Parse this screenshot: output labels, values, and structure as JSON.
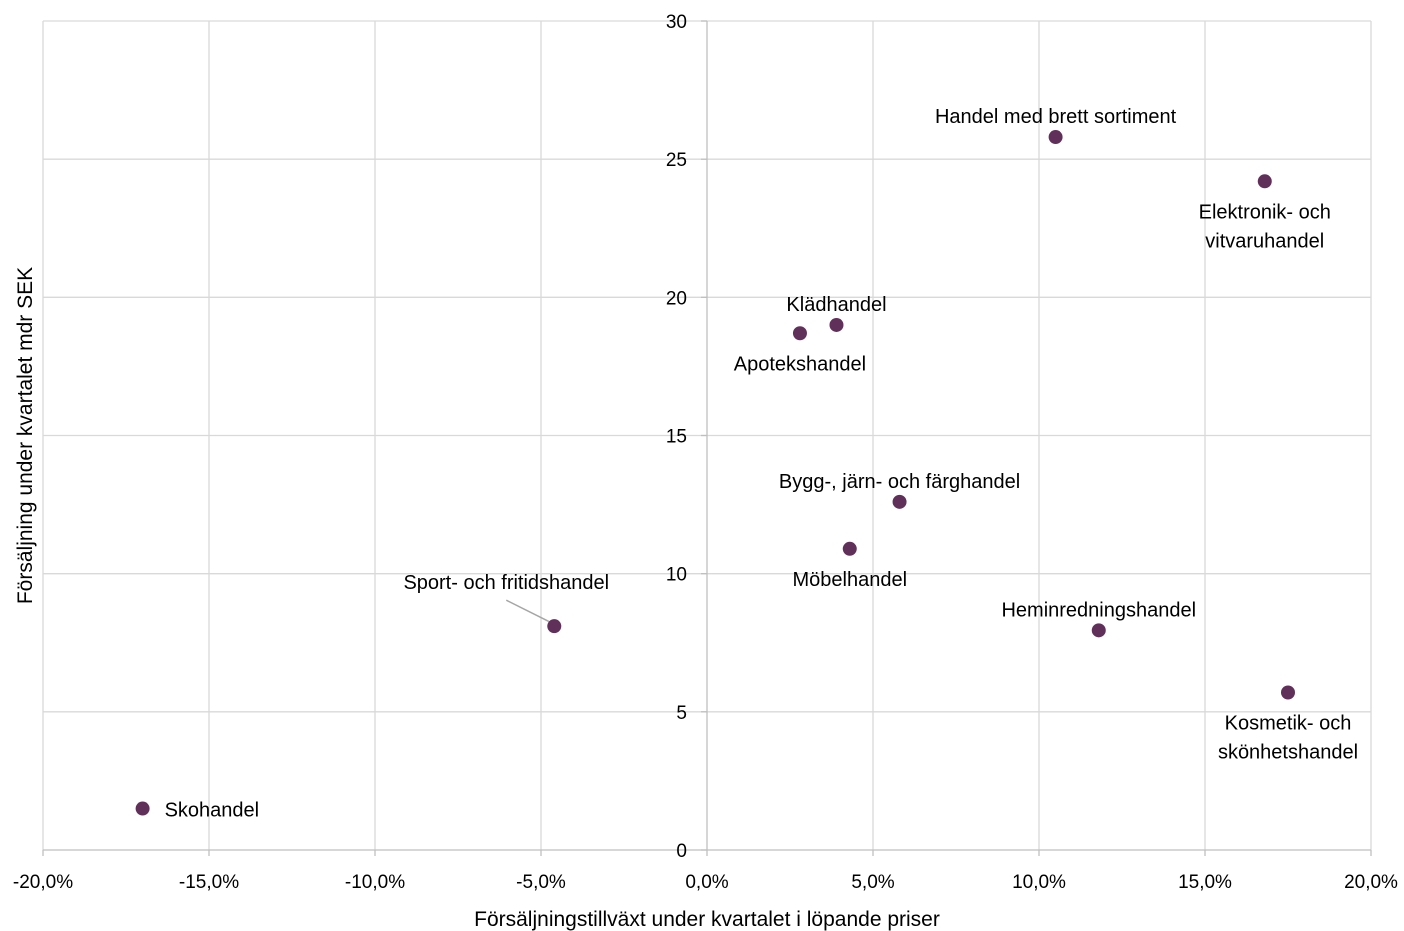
{
  "chart_data": {
    "type": "scatter",
    "xlabel": "Försäljningstillväxt under kvartalet i löpande priser",
    "ylabel": "Försäljning under kvartalet mdr SEK",
    "xlim": [
      -0.2,
      0.2
    ],
    "ylim": [
      0,
      30
    ],
    "x_ticks": [
      {
        "value": -0.2,
        "label": "-20,0%"
      },
      {
        "value": -0.15,
        "label": "-15,0%"
      },
      {
        "value": -0.1,
        "label": "-10,0%"
      },
      {
        "value": -0.05,
        "label": "-5,0%"
      },
      {
        "value": 0.0,
        "label": "0,0%"
      },
      {
        "value": 0.05,
        "label": "5,0%"
      },
      {
        "value": 0.1,
        "label": "10,0%"
      },
      {
        "value": 0.15,
        "label": "15,0%"
      },
      {
        "value": 0.2,
        "label": "20,0%"
      }
    ],
    "y_ticks": [
      {
        "value": 0,
        "label": "0"
      },
      {
        "value": 5,
        "label": "5"
      },
      {
        "value": 10,
        "label": "10"
      },
      {
        "value": 15,
        "label": "15"
      },
      {
        "value": 20,
        "label": "20"
      },
      {
        "value": 25,
        "label": "25"
      },
      {
        "value": 30,
        "label": "30"
      }
    ],
    "grid": true,
    "marker_color": "#61305a",
    "points": [
      {
        "name": "Handel med brett sortiment",
        "lines": [
          "Handel med brett sortiment"
        ],
        "x": 0.105,
        "y": 25.8,
        "label_pos": "above"
      },
      {
        "name": "Elektronik- och vitvaruhandel",
        "lines": [
          "Elektronik- och",
          "vitvaruhandel"
        ],
        "x": 0.168,
        "y": 24.2,
        "label_pos": "below"
      },
      {
        "name": "Klädhandel",
        "lines": [
          "Klädhandel"
        ],
        "x": 0.039,
        "y": 19.0,
        "label_pos": "above"
      },
      {
        "name": "Apotekshandel",
        "lines": [
          "Apotekshandel"
        ],
        "x": 0.028,
        "y": 18.7,
        "label_pos": "below"
      },
      {
        "name": "Bygg-, järn- och färghandel",
        "lines": [
          "Bygg-, järn- och färghandel"
        ],
        "x": 0.058,
        "y": 12.6,
        "label_pos": "above"
      },
      {
        "name": "Möbelhandel",
        "lines": [
          "Möbelhandel"
        ],
        "x": 0.043,
        "y": 10.9,
        "label_pos": "below"
      },
      {
        "name": "Sport- och fritidshandel",
        "lines": [
          "Sport- och fritidshandel"
        ],
        "x": -0.046,
        "y": 8.1,
        "label_pos": "above-left-leader"
      },
      {
        "name": "Heminredningshandel",
        "lines": [
          "Heminredningshandel"
        ],
        "x": 0.118,
        "y": 7.95,
        "label_pos": "above"
      },
      {
        "name": "Kosmetik- och skönhetshandel",
        "lines": [
          "Kosmetik- och",
          "skönhetshandel"
        ],
        "x": 0.175,
        "y": 5.7,
        "label_pos": "below"
      },
      {
        "name": "Skohandel",
        "lines": [
          "Skohandel"
        ],
        "x": -0.17,
        "y": 1.5,
        "label_pos": "right"
      }
    ]
  }
}
